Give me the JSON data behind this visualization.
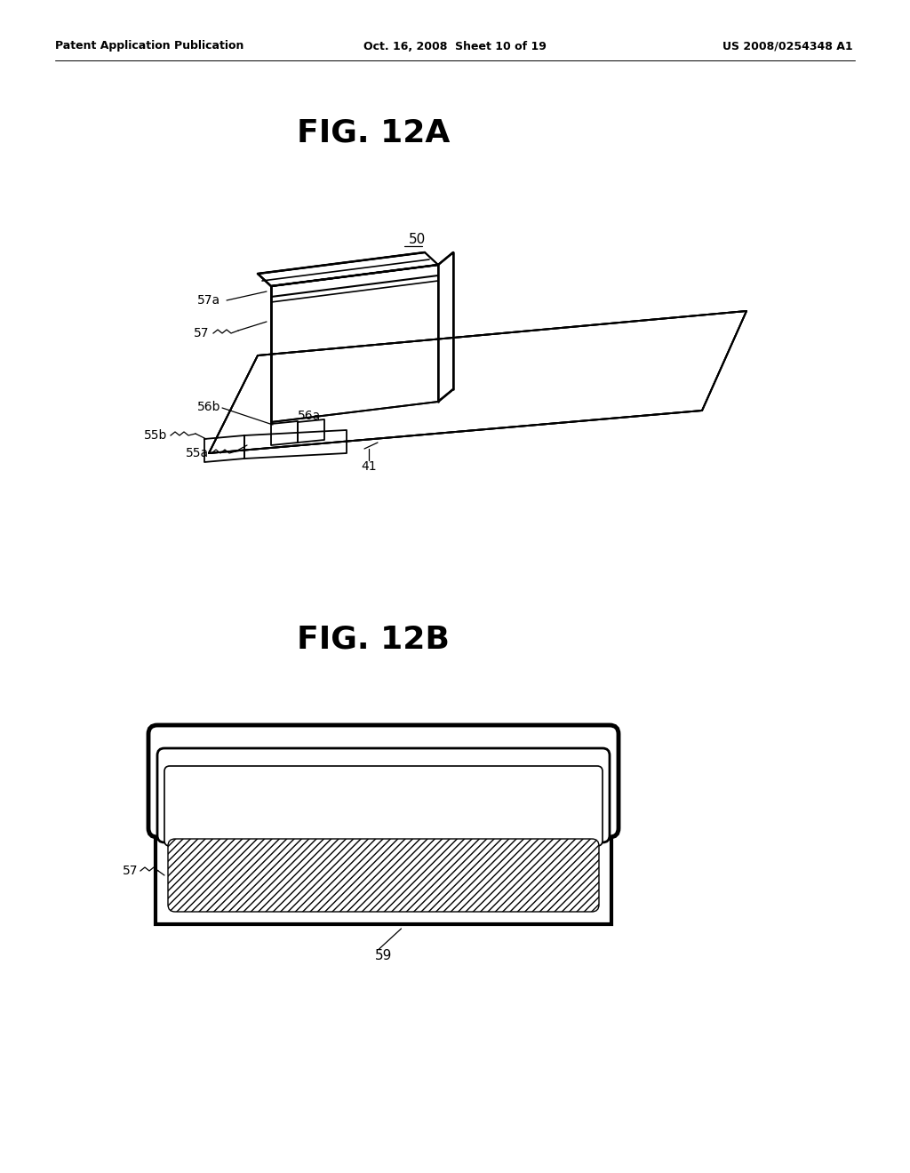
{
  "background_color": "#ffffff",
  "header_left": "Patent Application Publication",
  "header_center": "Oct. 16, 2008  Sheet 10 of 19",
  "header_right": "US 2008/0254348 A1",
  "fig12a_title": "FIG. 12A",
  "fig12b_title": "FIG. 12B",
  "line_color": "#000000",
  "lw": 1.4,
  "thin_lw": 0.9
}
